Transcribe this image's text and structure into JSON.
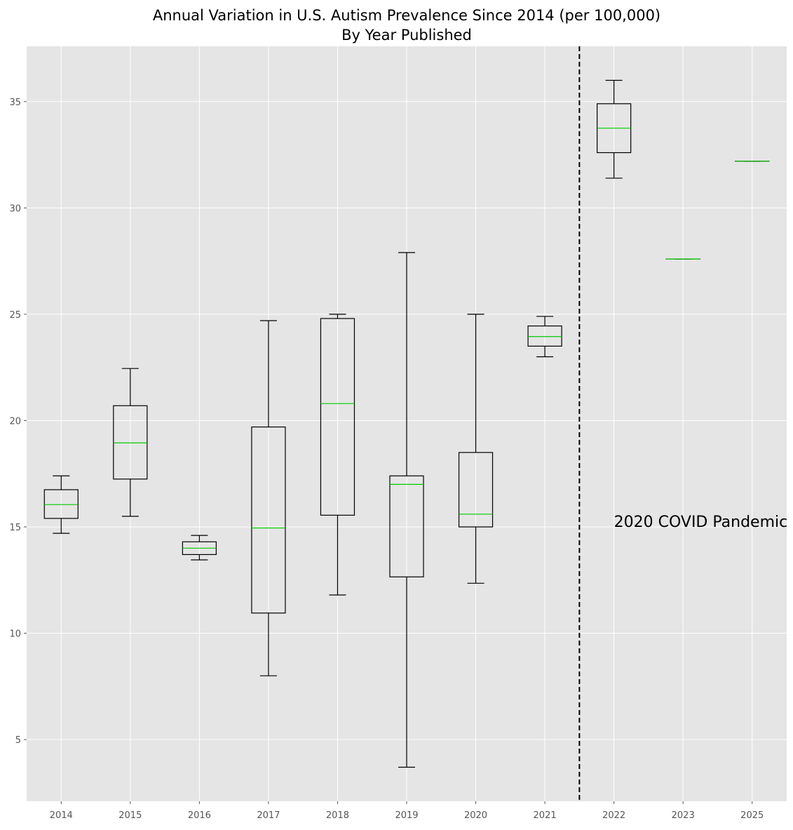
{
  "chart_data": {
    "type": "boxplot",
    "title_line1": "Annual Variation in U.S. Autism Prevalence Since 2014 (per 100,000)",
    "title_line2": "By Year Published",
    "xlabel": "",
    "ylabel": "",
    "ylim": [
      2.1,
      37.6
    ],
    "yticks": [
      5,
      10,
      15,
      20,
      25,
      30,
      35
    ],
    "grid": true,
    "categories": [
      "2014",
      "2015",
      "2016",
      "2017",
      "2018",
      "2019",
      "2020",
      "2021",
      "2022",
      "2023",
      "2025"
    ],
    "boxes": [
      {
        "label": "2014",
        "min": 14.7,
        "q1": 15.4,
        "median": 16.05,
        "q3": 16.75,
        "max": 17.4
      },
      {
        "label": "2015",
        "min": 15.5,
        "q1": 17.25,
        "median": 18.95,
        "q3": 20.7,
        "max": 22.45
      },
      {
        "label": "2016",
        "min": 13.45,
        "q1": 13.7,
        "median": 14.0,
        "q3": 14.3,
        "max": 14.6
      },
      {
        "label": "2017",
        "min": 8.0,
        "q1": 10.95,
        "median": 14.95,
        "q3": 19.7,
        "max": 24.7
      },
      {
        "label": "2018",
        "min": 11.8,
        "q1": 15.55,
        "median": 20.8,
        "q3": 24.8,
        "max": 25.0
      },
      {
        "label": "2019",
        "min": 3.7,
        "q1": 12.65,
        "median": 17.0,
        "q3": 17.4,
        "max": 27.9
      },
      {
        "label": "2020",
        "min": 12.35,
        "q1": 15.0,
        "median": 15.6,
        "q3": 18.5,
        "max": 25.0
      },
      {
        "label": "2021",
        "min": 23.0,
        "q1": 23.5,
        "median": 23.95,
        "q3": 24.45,
        "max": 24.9
      },
      {
        "label": "2022",
        "min": 31.4,
        "q1": 32.6,
        "median": 33.75,
        "q3": 34.9,
        "max": 36.0
      },
      {
        "label": "2023",
        "min": 27.6,
        "q1": 27.6,
        "median": 27.6,
        "q3": 27.6,
        "max": 27.6
      },
      {
        "label": "2025",
        "min": 32.2,
        "q1": 32.2,
        "median": 32.2,
        "q3": 32.2,
        "max": 32.2
      }
    ],
    "vline_position": 7.5,
    "annotation": {
      "text": "2020 COVID Pandemic",
      "x": 8.0,
      "y": 15.0
    },
    "colors": {
      "background": "#e5e5e5",
      "grid": "#ffffff",
      "box": "#000000",
      "median": "#00cc00",
      "vline": "#000000",
      "tick_text": "#555555",
      "title_text": "#000000"
    }
  }
}
